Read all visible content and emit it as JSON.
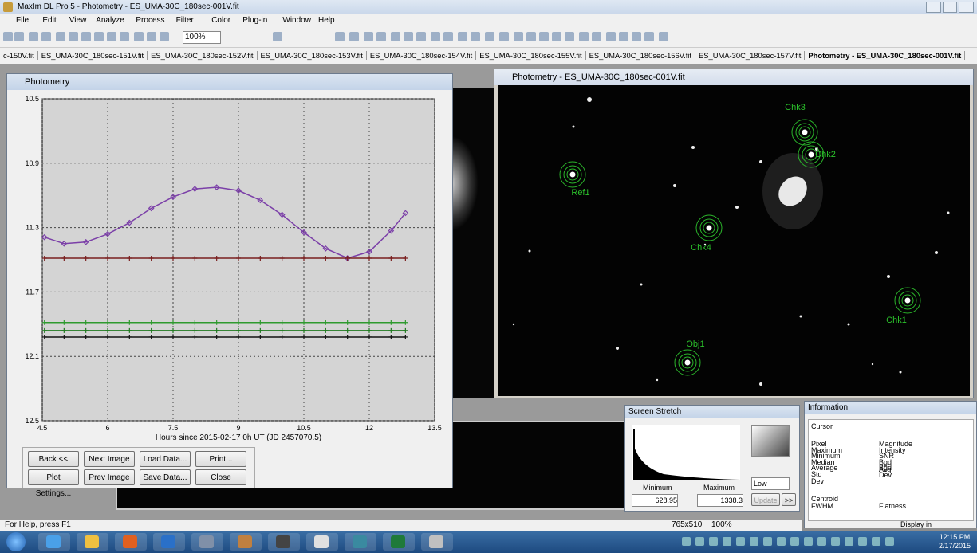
{
  "app": {
    "title": "MaxIm DL Pro 5 - Photometry - ES_UMA-30C_180sec-001V.fit",
    "menu": [
      "File",
      "Edit",
      "View",
      "Analyze",
      "Process",
      "Filter",
      "Color",
      "Plug-in",
      "Window",
      "Help"
    ],
    "zoom": "100%",
    "tabs": [
      "c-150V.fit",
      "ES_UMA-30C_180sec-151V.fit",
      "ES_UMA-30C_180sec-152V.fit",
      "ES_UMA-30C_180sec-153V.fit",
      "ES_UMA-30C_180sec-154V.fit",
      "ES_UMA-30C_180sec-155V.fit",
      "ES_UMA-30C_180sec-156V.fit",
      "ES_UMA-30C_180sec-157V.fit",
      "Photometry - ES_UMA-30C_180sec-001V.fit"
    ]
  },
  "photometry_window": {
    "title": "Photometry",
    "buttons": [
      "Back <<",
      "Next Image",
      "Load Data...",
      "Print...",
      "Plot Settings...",
      "Prev Image",
      "Save Data...",
      "Close"
    ]
  },
  "chart_data": {
    "type": "line",
    "x_label": "Hours since 2015-02-17 0h UT (JD 2457070.5)",
    "x": [
      4.55,
      5,
      5.5,
      6,
      6.5,
      7,
      7.5,
      8,
      8.5,
      9,
      9.5,
      10,
      10.5,
      11,
      11.5,
      12,
      12.5,
      12.83
    ],
    "series": [
      {
        "color": "#7b3fa8",
        "values": [
          11.36,
          11.4,
          11.39,
          11.34,
          11.27,
          11.18,
          11.11,
          11.06,
          11.05,
          11.07,
          11.13,
          11.22,
          11.33,
          11.43,
          11.49,
          11.45,
          11.32,
          11.21
        ]
      },
      {
        "color": "#7a1f1f",
        "values": [
          11.49,
          11.49,
          11.49,
          11.49,
          11.49,
          11.49,
          11.49,
          11.49,
          11.49,
          11.49,
          11.49,
          11.49,
          11.49,
          11.49,
          11.49,
          11.49,
          11.49,
          11.49
        ]
      },
      {
        "color": "#2e9a2e",
        "values": [
          11.89,
          11.89,
          11.89,
          11.89,
          11.89,
          11.89,
          11.89,
          11.89,
          11.89,
          11.89,
          11.89,
          11.89,
          11.89,
          11.89,
          11.89,
          11.89,
          11.89,
          11.89
        ]
      },
      {
        "color": "#1f7a1f",
        "values": [
          11.94,
          11.94,
          11.94,
          11.94,
          11.94,
          11.94,
          11.94,
          11.94,
          11.94,
          11.94,
          11.94,
          11.94,
          11.94,
          11.94,
          11.94,
          11.94,
          11.94,
          11.94
        ]
      },
      {
        "color": "#111111",
        "values": [
          11.98,
          11.98,
          11.98,
          11.98,
          11.98,
          11.98,
          11.98,
          11.98,
          11.98,
          11.98,
          11.98,
          11.98,
          11.98,
          11.98,
          11.98,
          11.98,
          11.98,
          11.98
        ]
      }
    ],
    "xlim": [
      4.5,
      13.5
    ],
    "xticks": [
      4.5,
      6,
      7.5,
      9,
      10.5,
      12,
      13.5
    ],
    "ylim": [
      10.5,
      12.5
    ],
    "yticks": [
      10.5,
      10.9,
      11.3,
      11.7,
      12.1,
      12.5
    ],
    "y_reversed": true,
    "grid": true
  },
  "image_window": {
    "title": "Photometry - ES_UMA-30C_180sec-001V.fit",
    "labels": [
      "Chk3",
      "Chk2",
      "Ref1",
      "Chk4",
      "Chk1",
      "Obj1"
    ]
  },
  "screen_stretch": {
    "title": "Screen Stretch",
    "minimum_label": "Minimum",
    "maximum_label": "Maximum",
    "minimum": "628.95",
    "maximum": "1338.3",
    "mode": "Low",
    "update": "Update",
    "more": ">>"
  },
  "information": {
    "title": "Information",
    "section": "Cursor",
    "left": [
      "Pixel",
      "Maximum",
      "Minimum",
      "Median",
      "Average",
      "Std Dev"
    ],
    "right": [
      "Magnitude",
      "Intensity",
      "SNR",
      "Bgd Avg",
      "Bgd Dev"
    ],
    "centroid": "Centroid",
    "fwhm": "FWHM",
    "flatness": "Flatness",
    "display_in": "Display in"
  },
  "status": {
    "help": "For Help, press F1",
    "size": "765x510",
    "zoom": "100%"
  },
  "taskbar": {
    "time": "12:15 PM",
    "date": "2/17/2015"
  }
}
